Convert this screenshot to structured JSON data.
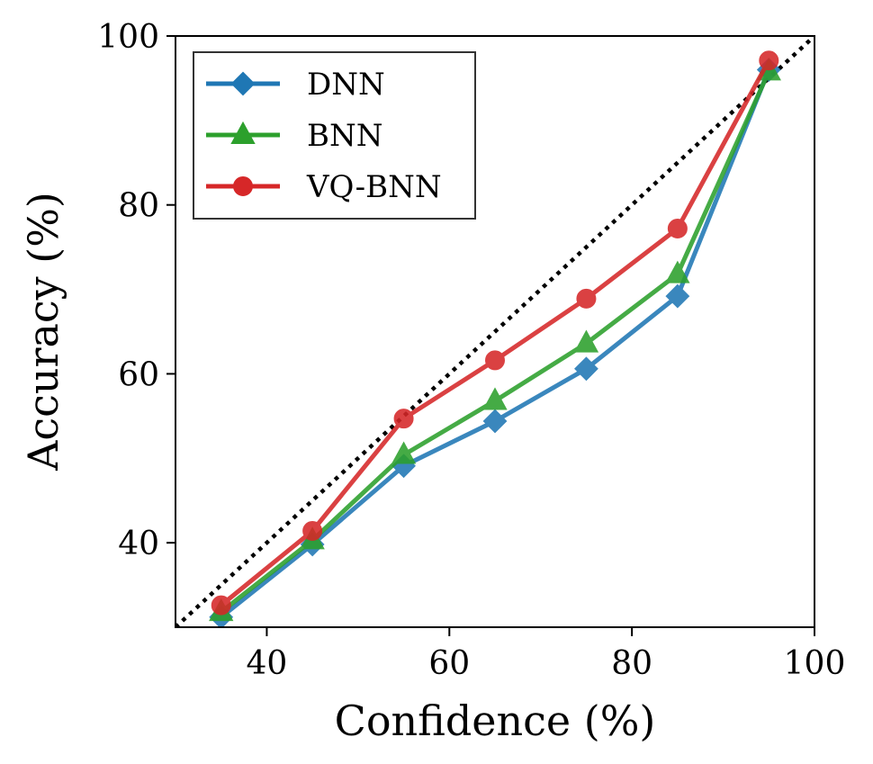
{
  "chart_data": {
    "type": "line",
    "title": "",
    "xlabel": "Confidence (%)",
    "ylabel": "Accuracy (%)",
    "xlim": [
      30,
      100
    ],
    "ylim": [
      30,
      100
    ],
    "xticks": [
      40,
      60,
      80,
      100
    ],
    "yticks": [
      40,
      60,
      80,
      100
    ],
    "x": [
      35,
      45,
      55,
      65,
      75,
      85,
      95
    ],
    "reference_line": {
      "style": "dotted",
      "color": "#000000",
      "from": [
        30,
        30
      ],
      "to": [
        100,
        100
      ]
    },
    "legend_position": "top-left",
    "series": [
      {
        "name": "DNN",
        "color": "#1f77b4",
        "marker": "diamond",
        "values": [
          31.2,
          39.8,
          49.1,
          54.4,
          60.6,
          69.2,
          96.0
        ]
      },
      {
        "name": "BNN",
        "color": "#2ca02c",
        "marker": "triangle",
        "values": [
          31.8,
          40.3,
          50.4,
          56.8,
          63.6,
          71.8,
          95.8
        ]
      },
      {
        "name": "VQ-BNN",
        "color": "#d62728",
        "marker": "circle",
        "values": [
          32.6,
          41.4,
          54.7,
          61.6,
          68.9,
          77.2,
          97.1
        ]
      }
    ]
  }
}
